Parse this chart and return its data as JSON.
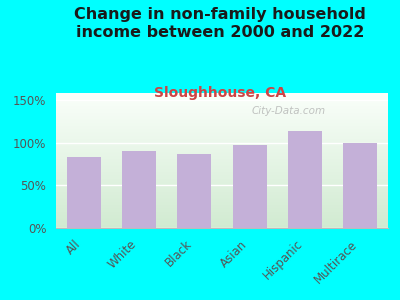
{
  "title": "Change in non-family household\nincome between 2000 and 2022",
  "subtitle": "Sloughhouse, CA",
  "categories": [
    "All",
    "White",
    "Black",
    "Asian",
    "Hispanic",
    "Multirace"
  ],
  "values": [
    83,
    90,
    87,
    97,
    113,
    99
  ],
  "bar_color": "#c4b0d8",
  "background_color": "#00ffff",
  "title_color": "#1a1a1a",
  "subtitle_color": "#cc4444",
  "tick_label_color": "#555555",
  "ytick_labels": [
    "0%",
    "50%",
    "100%",
    "150%"
  ],
  "ytick_values": [
    0,
    50,
    100,
    150
  ],
  "ylim": [
    0,
    158
  ],
  "watermark": "City-Data.com",
  "title_fontsize": 11.5,
  "subtitle_fontsize": 10
}
